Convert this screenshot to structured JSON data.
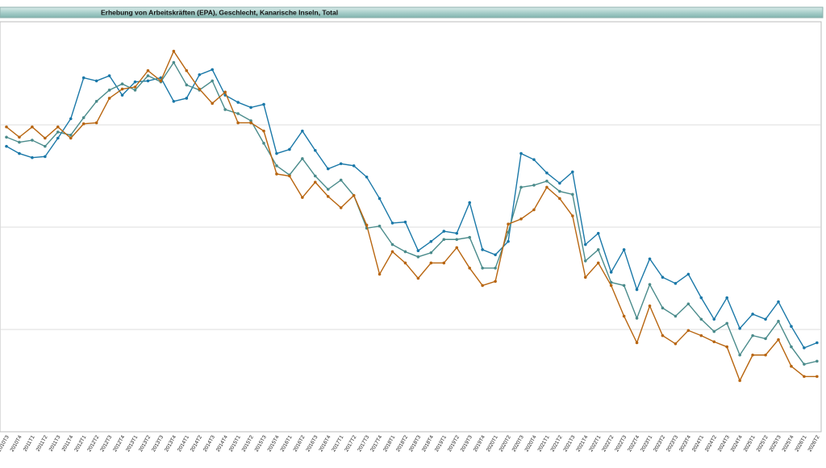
{
  "chart_data": {
    "type": "line",
    "title": "Erhebung von Arbeitskräften (EPA), Geschlecht, Kanarische Inseln, Total",
    "categories": [
      "2010T3",
      "2010T4",
      "2011T1",
      "2011T2",
      "2011T3",
      "2011T4",
      "2012T1",
      "2012T2",
      "2012T3",
      "2012T4",
      "2013T1",
      "2013T2",
      "2013T3",
      "2013T4",
      "2014T1",
      "2014T2",
      "2014T3",
      "2014T4",
      "2015T1",
      "2015T2",
      "2015T3",
      "2015T4",
      "2016T1",
      "2016T2",
      "2016T3",
      "2016T4",
      "2017T1",
      "2017T2",
      "2017T3",
      "2017T4",
      "2018T1",
      "2018T2",
      "2018T3",
      "2018T4",
      "2019T1",
      "2019T2",
      "2019T3",
      "2019T4",
      "2020T1",
      "2020T2",
      "2020T3",
      "2020T4",
      "2021T1",
      "2021T2",
      "2021T3",
      "2021T4",
      "2022T1",
      "2022T2",
      "2022T3",
      "2022T4",
      "2023T1",
      "2023T2",
      "2023T3",
      "2023T4",
      "2024T1",
      "2024T2",
      "2024T3",
      "2024T4",
      "2025T1",
      "2025T2",
      "2025T3",
      "2025T4",
      "2026T1",
      "2026T2"
    ],
    "series": [
      {
        "color": "#1a78a8",
        "values": [
          27.9,
          27.2,
          26.8,
          26.9,
          28.7,
          30.6,
          34.6,
          34.3,
          34.8,
          32.9,
          34.2,
          34.3,
          34.6,
          32.3,
          32.6,
          34.9,
          35.4,
          32.9,
          32.2,
          31.7,
          32.0,
          27.2,
          27.6,
          29.4,
          27.5,
          25.7,
          26.2,
          26.0,
          24.9,
          22.8,
          20.4,
          20.5,
          17.7,
          18.6,
          19.6,
          19.4,
          22.4,
          17.8,
          17.3,
          18.6,
          27.2,
          26.6,
          25.3,
          24.3,
          25.4,
          18.3,
          19.4,
          15.6,
          17.8,
          13.9,
          16.9,
          15.1,
          14.5,
          15.4,
          13.1,
          11.0,
          13.1,
          10.1,
          11.5,
          11.0,
          12.7,
          10.3,
          8.2,
          8.7
        ]
      },
      {
        "color": "#4a8b8b",
        "values": [
          28.8,
          28.3,
          28.5,
          27.9,
          29.3,
          29.0,
          30.7,
          32.3,
          33.4,
          34.0,
          33.4,
          34.8,
          34.2,
          36.1,
          33.9,
          33.4,
          34.3,
          31.5,
          31.1,
          30.4,
          28.2,
          26.0,
          25.1,
          26.7,
          25.0,
          23.7,
          24.6,
          23.1,
          19.9,
          20.1,
          18.3,
          17.6,
          17.1,
          17.5,
          18.8,
          18.8,
          19.0,
          16.0,
          16.0,
          19.5,
          23.9,
          24.1,
          24.5,
          23.5,
          23.2,
          16.7,
          17.8,
          14.6,
          14.3,
          11.1,
          14.4,
          12.1,
          11.3,
          12.5,
          11.0,
          9.8,
          10.6,
          7.5,
          9.4,
          9.1,
          10.8,
          8.3,
          6.6,
          6.9
        ]
      },
      {
        "color": "#b8650f",
        "values": [
          29.8,
          28.8,
          29.8,
          28.7,
          29.8,
          28.7,
          30.1,
          30.2,
          32.6,
          33.5,
          33.7,
          35.3,
          34.3,
          37.2,
          35.3,
          33.5,
          32.1,
          33.2,
          30.2,
          30.2,
          29.4,
          25.2,
          25.0,
          22.9,
          24.4,
          23.0,
          21.9,
          23.1,
          20.2,
          15.4,
          17.6,
          16.5,
          15.0,
          16.5,
          16.5,
          18.0,
          16.0,
          14.3,
          14.7,
          20.3,
          20.8,
          21.7,
          23.9,
          22.8,
          21.1,
          15.1,
          16.5,
          14.3,
          11.3,
          8.7,
          12.3,
          9.4,
          8.6,
          9.9,
          9.4,
          8.8,
          8.3,
          5.0,
          7.5,
          7.5,
          9.0,
          6.4,
          5.4,
          5.4
        ]
      }
    ],
    "ylim": [
      0,
      40
    ],
    "yticks": [
      10,
      20,
      30
    ],
    "grid": true
  }
}
